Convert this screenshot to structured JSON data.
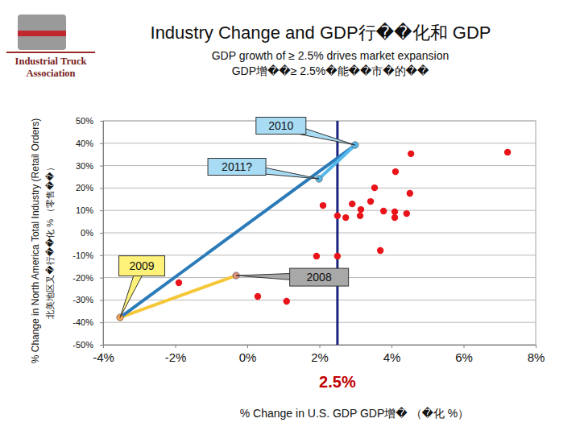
{
  "chart_data": {
    "type": "scatter",
    "title": "Industry Change and GDP行��化和 GDP",
    "subtitle": [
      "GDP growth of ≥ 2.5% drives market expansion",
      "GDP增��≥ 2.5%�能��市�的��"
    ],
    "logo": [
      "Industrial Truck",
      "Association"
    ],
    "x_label": "% Change in U.S. GDP GDP增� （�化 %）",
    "y_label": [
      "% Change in North America Total Industry (Retail Orders)",
      "北美地区叉�行��化 % （零售��）"
    ],
    "xlim": [
      -4,
      8
    ],
    "xticks": [
      {
        "value": -4,
        "label": "-4%"
      },
      {
        "value": -2,
        "label": "-2%"
      },
      {
        "value": 0,
        "label": "0%"
      },
      {
        "value": 2,
        "label": "2%"
      },
      {
        "value": 4,
        "label": "4%"
      },
      {
        "value": 6,
        "label": "6%"
      },
      {
        "value": 8,
        "label": "8%"
      }
    ],
    "ylim": [
      -50,
      50
    ],
    "yticks": [
      {
        "value": -50,
        "label": "-50%"
      },
      {
        "value": -40,
        "label": "-40%"
      },
      {
        "value": -30,
        "label": "-30%"
      },
      {
        "value": -20,
        "label": "-20%"
      },
      {
        "value": -10,
        "label": "-10%"
      },
      {
        "value": 0,
        "label": "0%"
      },
      {
        "value": 10,
        "label": "10%"
      },
      {
        "value": 20,
        "label": "20%"
      },
      {
        "value": 30,
        "label": "30%"
      },
      {
        "value": 40,
        "label": "40%"
      },
      {
        "value": 50,
        "label": "50%"
      }
    ],
    "grid": true,
    "series": [
      {
        "type": "scatter",
        "color": "#e8141a",
        "marker": "circle",
        "x": [
          4.54,
          7.22,
          4.11,
          3.53,
          4.51,
          3.42,
          2.1,
          2.91,
          3.15,
          4.09,
          4.42,
          3.78,
          2.5,
          2.73,
          3.13,
          4.09,
          1.92,
          2.5,
          3.69,
          -1.9,
          0.29,
          1.09
        ],
        "values": [
          35.3,
          36.0,
          27.3,
          20.1,
          17.6,
          14.0,
          12.2,
          12.9,
          10.4,
          9.4,
          8.6,
          9.7,
          7.6,
          6.8,
          7.6,
          6.8,
          -10.4,
          -10.4,
          -7.9,
          -22.3,
          -28.4,
          -30.6
        ]
      },
      {
        "type": "line",
        "color": "#f5c83a",
        "x": [
          -0.31,
          -3.53
        ],
        "values": [
          -19.1,
          -37.8
        ]
      },
      {
        "type": "line",
        "color": "#2b7bb9",
        "x": [
          -3.53,
          2.99
        ],
        "values": [
          -37.8,
          39.2
        ]
      },
      {
        "type": "line",
        "color": "#55b8ea",
        "x": [
          1.99,
          2.99
        ],
        "values": [
          24.1,
          39.2
        ]
      },
      {
        "type": "scatter",
        "marker": "circle",
        "colors": [
          "#e0907a",
          "#f0a050",
          "#55b8ea",
          "#55b8ea"
        ],
        "x": [
          -0.31,
          -3.53,
          2.99,
          1.99
        ],
        "values": [
          -19.1,
          -37.8,
          39.2,
          24.1
        ]
      }
    ],
    "annotations": [
      {
        "text": "2008",
        "x": -0.31,
        "y": -19.1,
        "color": "#a8a8a8"
      },
      {
        "text": "2009",
        "x": -3.53,
        "y": -37.8,
        "color": "#fff27a"
      },
      {
        "text": "2010",
        "x": 2.99,
        "y": 39.2,
        "color": "#a8dcf5"
      },
      {
        "text": "2011?",
        "x": 1.99,
        "y": 24.1,
        "color": "#a8dcf5"
      }
    ],
    "reference_line": {
      "x": 2.5,
      "label": "2.5%",
      "color": "#1a237e"
    }
  }
}
